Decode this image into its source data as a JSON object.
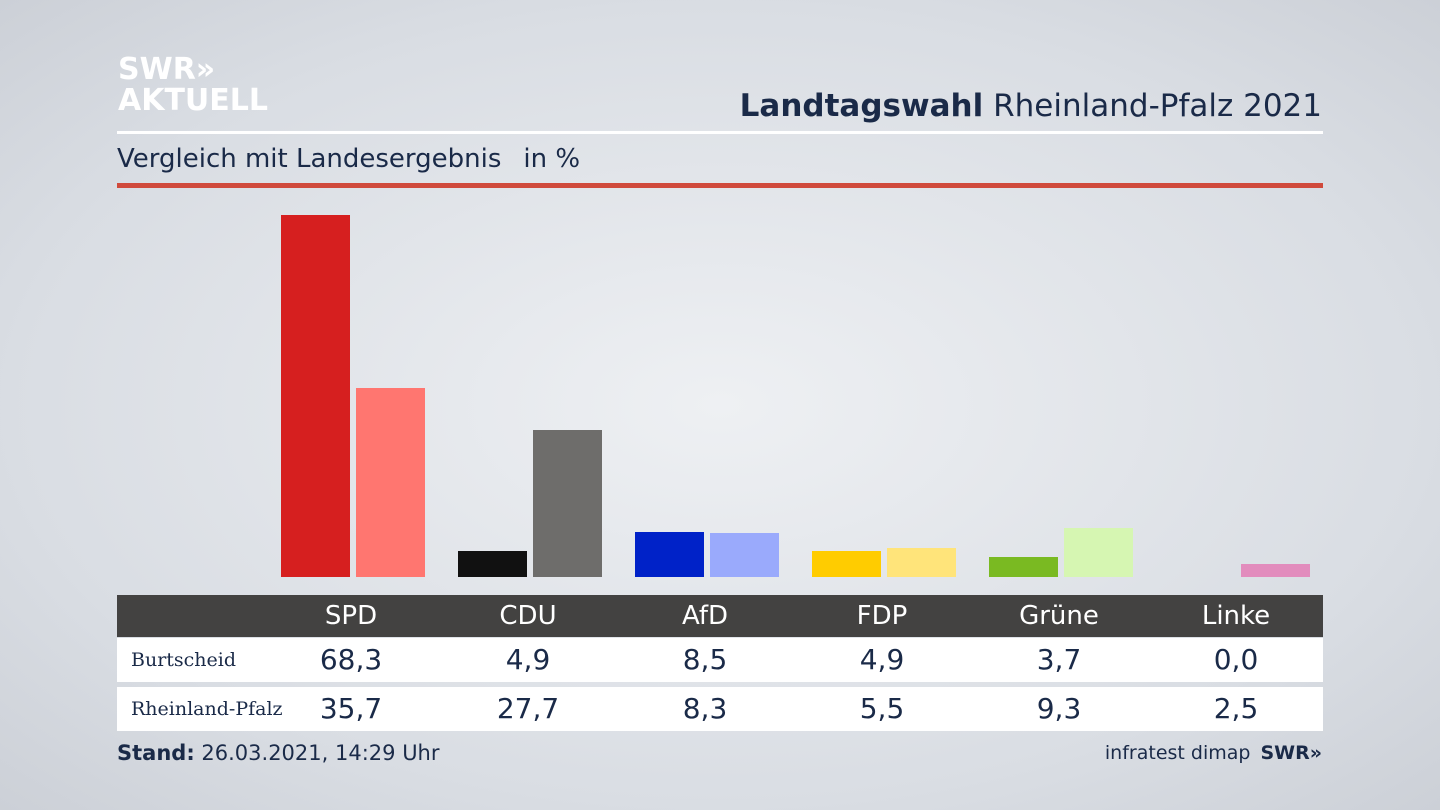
{
  "logo": {
    "line1": "SWR»",
    "line2": "AKTUELL"
  },
  "header": {
    "title_bold": "Landtagswahl",
    "title_rest": "Rheinland-Pfalz 2021"
  },
  "subtitle": {
    "text": "Vergleich mit Landesergebnis",
    "unit": "in %"
  },
  "colors": {
    "SPD": [
      "#d61f1f",
      "#ff7670"
    ],
    "CDU": [
      "#111111",
      "#6e6d6b"
    ],
    "AfD": [
      "#0022c8",
      "#9aaafc"
    ],
    "FDP": [
      "#ffcc00",
      "#ffe47a"
    ],
    "Grüne": [
      "#7aba22",
      "#d6f6b2"
    ],
    "Linke": [
      "#c2358f",
      "#e28cbd"
    ]
  },
  "chart_data": {
    "type": "bar",
    "categories": [
      "SPD",
      "CDU",
      "AfD",
      "FDP",
      "Grüne",
      "Linke"
    ],
    "series": [
      {
        "name": "Burtscheid",
        "values": [
          68.3,
          4.9,
          8.5,
          4.9,
          3.7,
          0.0
        ]
      },
      {
        "name": "Rheinland-Pfalz",
        "values": [
          35.7,
          27.7,
          8.3,
          5.5,
          9.3,
          2.5
        ]
      }
    ],
    "ylim": [
      0,
      70
    ],
    "grid": false,
    "legend": "none"
  },
  "table": {
    "rows": [
      {
        "label": "Burtscheid",
        "values": [
          "68,3",
          "4,9",
          "8,5",
          "4,9",
          "3,7",
          "0,0"
        ]
      },
      {
        "label": "Rheinland-Pfalz",
        "values": [
          "35,7",
          "27,7",
          "8,3",
          "5,5",
          "9,3",
          "2,5"
        ]
      }
    ]
  },
  "footer": {
    "stand_label": "Stand:",
    "stand_value": "26.03.2021, 14:29 Uhr",
    "source": "infratest dimap",
    "brand": "SWR»"
  }
}
